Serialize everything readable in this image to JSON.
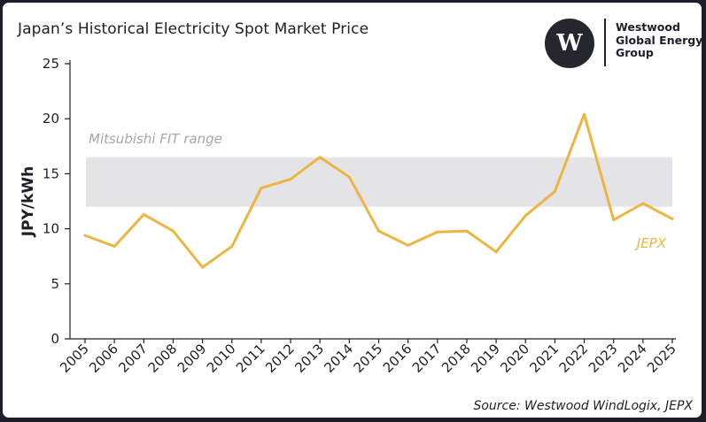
{
  "title": "Japan’s Historical Electricity Spot Market Price",
  "logo": {
    "mark": "W",
    "lines": [
      "Westwood",
      "Global Energy",
      "Group"
    ]
  },
  "source": "Source: Westwood WindLogix, JEPX",
  "colors": {
    "line": "#ebb541",
    "band": "#e3e3e8",
    "band_label": "#a5a5ad",
    "text": "#1e1e2a",
    "frame": "#1e1e2a"
  },
  "chart_data": {
    "type": "line",
    "title": "Japan’s Historical Electricity Spot Market Price",
    "xlabel": "",
    "ylabel": "JPY/kWh",
    "ylim": [
      0,
      25
    ],
    "yticks": [
      0,
      5,
      10,
      15,
      20,
      25
    ],
    "grid": false,
    "categories": [
      "2005",
      "2006",
      "2007",
      "2008",
      "2009",
      "2010",
      "2011",
      "2012",
      "2013",
      "2014",
      "2015",
      "2016",
      "2017",
      "2018",
      "2019",
      "2020",
      "2021",
      "2022",
      "2023",
      "2024",
      "2025"
    ],
    "series": [
      {
        "name": "JEPX",
        "values": [
          9.4,
          8.4,
          11.3,
          9.8,
          6.5,
          8.4,
          13.7,
          14.5,
          16.5,
          14.7,
          9.8,
          8.5,
          9.7,
          9.8,
          7.9,
          11.2,
          13.4,
          20.4,
          10.8,
          12.3,
          10.9
        ]
      }
    ],
    "band": {
      "label": "Mitsubishi FIT range",
      "from": 12.0,
      "to": 16.5
    }
  }
}
